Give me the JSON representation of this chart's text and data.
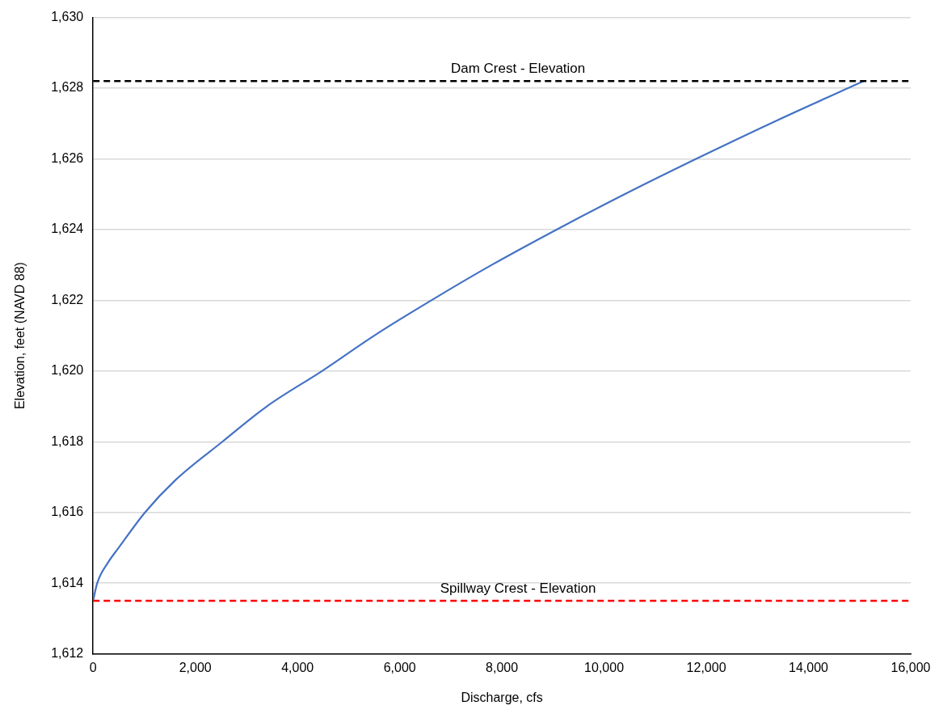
{
  "chart_data": {
    "type": "line",
    "xlabel": "Discharge, cfs",
    "ylabel": "Elevation, feet (NAVD 88)",
    "x": [
      0,
      80,
      300,
      500,
      1015,
      1600,
      2530,
      3400,
      4480,
      5500,
      6620,
      7800,
      9070,
      10400,
      11800,
      13400,
      15080
    ],
    "series": [
      {
        "color": "#4472c4",
        "values": [
          1613.5,
          1614,
          1614.6,
          1615,
          1616,
          1616.9,
          1618,
          1619,
          1620,
          1621,
          1622,
          1623,
          1624,
          1625,
          1626,
          1627.1,
          1628.2
        ]
      }
    ],
    "xlim": [
      0,
      16000
    ],
    "xticks": [
      {
        "value": 0,
        "label": "0"
      },
      {
        "value": 2000,
        "label": "2,000"
      },
      {
        "value": 4000,
        "label": "4,000"
      },
      {
        "value": 6000,
        "label": "6,000"
      },
      {
        "value": 8000,
        "label": "8,000"
      },
      {
        "value": 10000,
        "label": "10,000"
      },
      {
        "value": 12000,
        "label": "12,000"
      },
      {
        "value": 14000,
        "label": "14,000"
      },
      {
        "value": 16000,
        "label": "16,000"
      }
    ],
    "ylim": [
      1612,
      1630
    ],
    "yticks": [
      {
        "value": 1612,
        "label": "1,612"
      },
      {
        "value": 1614,
        "label": "1,614"
      },
      {
        "value": 1616,
        "label": "1,616"
      },
      {
        "value": 1618,
        "label": "1,618"
      },
      {
        "value": 1620,
        "label": "1,620"
      },
      {
        "value": 1622,
        "label": "1,622"
      },
      {
        "value": 1624,
        "label": "1,624"
      },
      {
        "value": 1626,
        "label": "1,626"
      },
      {
        "value": 1628,
        "label": "1,628"
      },
      {
        "value": 1630,
        "label": "1,630"
      }
    ],
    "ref_lines": [
      {
        "axis": "y",
        "value": 1628.2,
        "label": "Dam Crest - Elevation",
        "color": "#000000",
        "line_style": "dashed"
      },
      {
        "axis": "y",
        "value": 1613.5,
        "label": "Spillway Crest - Elevation",
        "color": "#ff0000",
        "line_style": "dashed"
      }
    ],
    "grid": "y",
    "legend": false,
    "marker": "none",
    "line_style": "solid"
  }
}
